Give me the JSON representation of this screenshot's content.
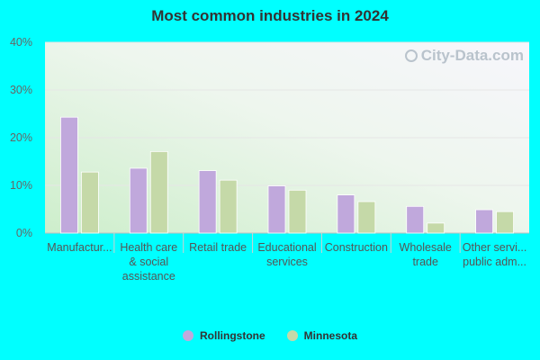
{
  "chart_data": {
    "type": "bar",
    "title": "Most common industries in 2024",
    "categories": [
      [
        "Manufactur..."
      ],
      [
        "Health care",
        "& social",
        "assistance"
      ],
      [
        "Retail trade"
      ],
      [
        "Educational",
        "services"
      ],
      [
        "Construction"
      ],
      [
        "Wholesale",
        "trade"
      ],
      [
        "Other servi...",
        "public adm..."
      ]
    ],
    "series": [
      {
        "name": "Rollingstone",
        "color": "#c0a8dc",
        "values": [
          24.3,
          13.6,
          13.1,
          9.9,
          8.0,
          5.6,
          4.9
        ]
      },
      {
        "name": "Minnesota",
        "color": "#c5d9a8",
        "values": [
          12.8,
          17.1,
          11.1,
          9.0,
          6.6,
          2.1,
          4.5
        ]
      }
    ],
    "ylim": [
      0,
      40
    ],
    "yticks": [
      "0%",
      "10%",
      "20%",
      "30%",
      "40%"
    ],
    "ytick_values": [
      0,
      10,
      20,
      30,
      40
    ],
    "grid": true,
    "legend_position": "bottom"
  },
  "watermark": "City-Data.com"
}
